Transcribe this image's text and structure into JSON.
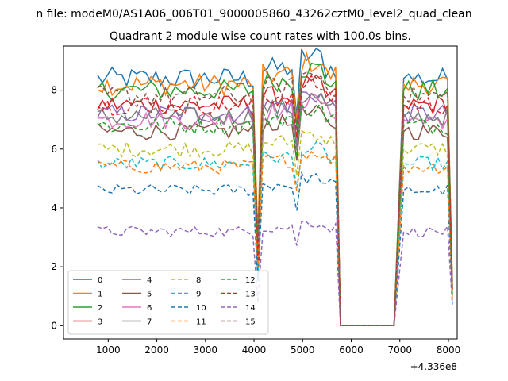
{
  "figure": {
    "suptitle": "n file: modeM0/AS1A06_006T01_9000005860_43262cztM0_level2_quad_clean",
    "title": "Quadrant 2 module wise count rates with 100.0s bins."
  },
  "chart_data": {
    "type": "line",
    "title": "Quadrant 2 module wise count rates with 100.0s bins.",
    "xlabel": "",
    "ylabel": "",
    "x_offset_label": "+4.336e8",
    "xlim": [
      80,
      8180
    ],
    "ylim": [
      -0.45,
      9.5
    ],
    "xticks": [
      1000,
      2000,
      3000,
      4000,
      5000,
      6000,
      7000,
      8000
    ],
    "xtick_labels": [
      "1000",
      "2000",
      "3000",
      "4000",
      "5000",
      "6000",
      "7000",
      "8000"
    ],
    "yticks": [
      0,
      2,
      4,
      6,
      8
    ],
    "ytick_labels": [
      "0",
      "2",
      "4",
      "6",
      "8"
    ],
    "grid": false,
    "legend_position": "lower-left",
    "legend_columns": 4,
    "colors": [
      "#1f77b4",
      "#ff7f0e",
      "#2ca02c",
      "#d62728",
      "#9467bd",
      "#8c564b",
      "#e377c2",
      "#7f7f7f",
      "#bcbd22",
      "#17becf"
    ],
    "series": [
      {
        "name": "0",
        "style": "solid",
        "level": 8.4
      },
      {
        "name": "1",
        "style": "solid",
        "level": 8.2
      },
      {
        "name": "2",
        "style": "solid",
        "level": 8.0
      },
      {
        "name": "3",
        "style": "solid",
        "level": 7.5
      },
      {
        "name": "4",
        "style": "solid",
        "level": 7.2
      },
      {
        "name": "5",
        "style": "solid",
        "level": 6.6
      },
      {
        "name": "6",
        "style": "solid",
        "level": 7.0
      },
      {
        "name": "7",
        "style": "solid",
        "level": 7.1
      },
      {
        "name": "8",
        "style": "dashed",
        "level": 6.0
      },
      {
        "name": "9",
        "style": "dashed",
        "level": 5.5
      },
      {
        "name": "10",
        "style": "dashed",
        "level": 4.6
      },
      {
        "name": "11",
        "style": "dashed",
        "level": 5.4
      },
      {
        "name": "12",
        "style": "dashed",
        "level": 6.8
      },
      {
        "name": "13",
        "style": "dashed",
        "level": 7.5
      },
      {
        "name": "14",
        "style": "dashed",
        "level": 3.2
      },
      {
        "name": "15",
        "style": "dashed",
        "level": 7.8
      }
    ]
  }
}
